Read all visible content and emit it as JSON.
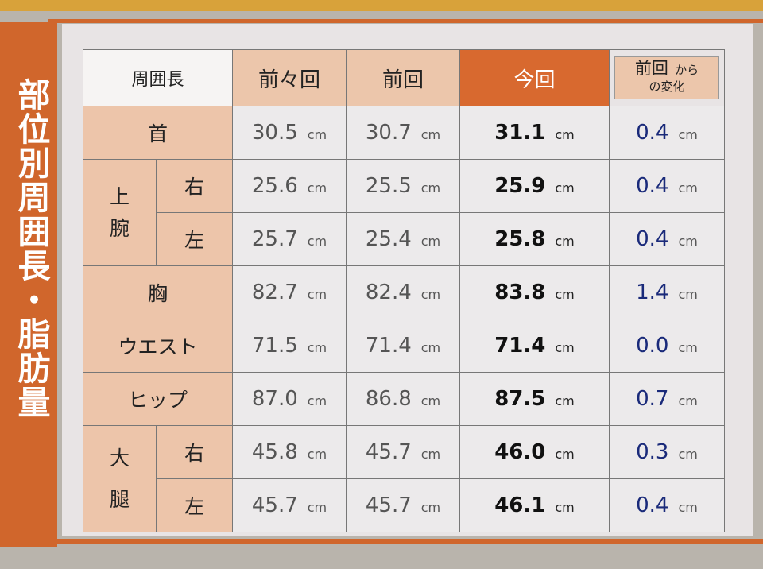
{
  "sidebar": {
    "title": "部位別周囲長・脂肪量"
  },
  "table": {
    "headers": {
      "label": "周囲長",
      "prev2": "前々回",
      "prev": "前回",
      "now": "今回",
      "change_main": "前回",
      "change_suffix": "から",
      "change_line2": "の変化"
    },
    "unit": "cm",
    "groups": {
      "arm": "上\n腕",
      "thigh": "大\n腿"
    },
    "group_arm_1": "上",
    "group_arm_2": "腕",
    "group_thigh_1": "大",
    "group_thigh_2": "腿",
    "rows": [
      {
        "part": "首",
        "prev2": "30.5",
        "prev": "30.7",
        "now": "31.1",
        "change": "0.4"
      },
      {
        "part": "右",
        "prev2": "25.6",
        "prev": "25.5",
        "now": "25.9",
        "change": "0.4"
      },
      {
        "part": "左",
        "prev2": "25.7",
        "prev": "25.4",
        "now": "25.8",
        "change": "0.4"
      },
      {
        "part": "胸",
        "prev2": "82.7",
        "prev": "82.4",
        "now": "83.8",
        "change": "1.4"
      },
      {
        "part": "ウエスト",
        "prev2": "71.5",
        "prev": "71.4",
        "now": "71.4",
        "change": "0.0"
      },
      {
        "part": "ヒップ",
        "prev2": "87.0",
        "prev": "86.8",
        "now": "87.5",
        "change": "0.7"
      },
      {
        "part": "右",
        "prev2": "45.8",
        "prev": "45.7",
        "now": "46.0",
        "change": "0.3"
      },
      {
        "part": "左",
        "prev2": "45.7",
        "prev": "45.7",
        "now": "46.1",
        "change": "0.4"
      }
    ]
  }
}
